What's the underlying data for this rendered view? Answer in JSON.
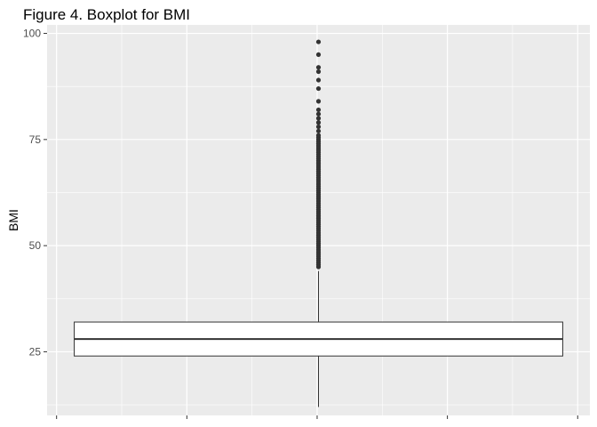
{
  "chart_data": {
    "type": "boxplot",
    "title": "Figure 4. Boxplot for BMI",
    "xlabel": "",
    "ylabel": "BMI",
    "ylim": [
      10,
      102
    ],
    "y_ticks": [
      25,
      50,
      75,
      100
    ],
    "y_tick_labels": [
      "25",
      "50",
      "75",
      "100"
    ],
    "grid": true,
    "box": {
      "min": 12,
      "q1": 24,
      "median": 28,
      "q3": 32,
      "whisker_high": 44,
      "outliers": [
        45,
        45.5,
        46,
        46.5,
        47,
        47.5,
        48,
        48.5,
        49,
        49.5,
        50,
        50.5,
        51,
        51.5,
        52,
        52.5,
        53,
        53.5,
        54,
        54.5,
        55,
        55.5,
        56,
        56.5,
        57,
        57.5,
        58,
        58.5,
        59,
        59.5,
        60,
        60.5,
        61,
        61.5,
        62,
        62.5,
        63,
        63.5,
        64,
        64.5,
        65,
        65.5,
        66,
        66.5,
        67,
        67.5,
        68,
        68.5,
        69,
        69.5,
        70,
        70.5,
        71,
        71.5,
        72,
        72.5,
        73,
        73.5,
        74,
        74.5,
        75,
        75.5,
        76,
        77,
        78,
        79,
        80,
        81,
        82,
        84,
        87,
        89,
        91,
        92,
        95,
        98
      ]
    },
    "colors": {
      "panel": "#ebebeb",
      "grid_major": "#ffffff",
      "box_fill": "#ffffff",
      "box_line": "#333333",
      "outlier": "#333333"
    }
  }
}
